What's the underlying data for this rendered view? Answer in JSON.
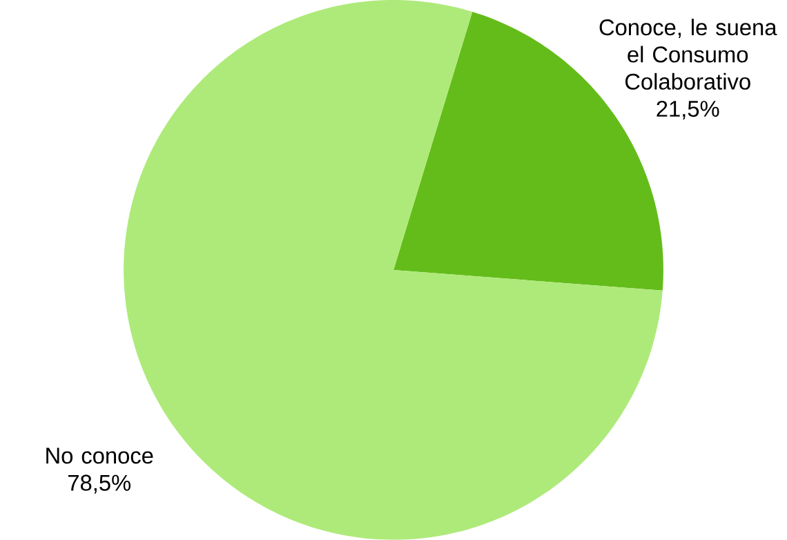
{
  "chart_data": {
    "type": "pie",
    "categories": [
      "Conoce, le suena el Consumo Colaborativo",
      "No conoce"
    ],
    "values": [
      21.5,
      78.5
    ],
    "colors": [
      "#64bc1a",
      "#aeea7a"
    ],
    "value_labels": [
      "21,5%",
      "78,5%"
    ]
  }
}
